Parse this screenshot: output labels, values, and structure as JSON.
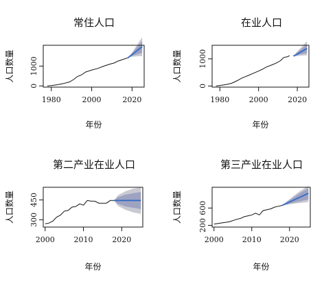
{
  "figure": {
    "background": "#ffffff"
  },
  "colors": {
    "history_line": "#111111",
    "forecast_line": "#3a6fc4",
    "band_95": "#c9c9d2",
    "band_80": "#9fa3c2"
  },
  "chart_data": [
    {
      "type": "line",
      "title": "常住人口",
      "xlabel": "年份",
      "ylabel": "人口数量",
      "xlim": [
        1976,
        2026
      ],
      "ylim": [
        -60,
        2050
      ],
      "xticks": [
        1980,
        2000,
        2020
      ],
      "yticks": [
        0,
        1000
      ],
      "grid": false,
      "legend": "none",
      "history": {
        "x": [
          1978,
          1980,
          1983,
          1986,
          1989,
          1991,
          1993,
          1995,
          1997,
          2000,
          2003,
          2006,
          2009,
          2011,
          2013,
          2015,
          2018
        ],
        "y": [
          0,
          20,
          60,
          120,
          200,
          320,
          480,
          560,
          700,
          800,
          880,
          1000,
          1100,
          1150,
          1250,
          1320,
          1420
        ]
      },
      "forecast": {
        "x": [
          2018,
          2019,
          2020,
          2021,
          2022,
          2023,
          2024,
          2025
        ],
        "mean": [
          1420,
          1500,
          1580,
          1660,
          1740,
          1820,
          1900,
          1980
        ],
        "lo80": [
          1420,
          1470,
          1510,
          1550,
          1580,
          1610,
          1640,
          1660
        ],
        "hi80": [
          1420,
          1530,
          1650,
          1770,
          1900,
          2020,
          2140,
          2260
        ],
        "lo95": [
          1420,
          1450,
          1470,
          1480,
          1490,
          1500,
          1500,
          1500
        ],
        "hi95": [
          1420,
          1550,
          1690,
          1840,
          2000,
          2150,
          2300,
          2450
        ]
      }
    },
    {
      "type": "line",
      "title": "在业人口",
      "xlabel": "年份",
      "ylabel": "人口数量",
      "xlim": [
        1976,
        2026
      ],
      "ylim": [
        -40,
        1500
      ],
      "xticks": [
        1980,
        2000,
        2020
      ],
      "yticks": [
        0,
        1000
      ],
      "grid": false,
      "legend": "none",
      "history": {
        "x": [
          1978,
          1980,
          1983,
          1986,
          1989,
          1991,
          1993,
          1995,
          1997,
          2000,
          2002,
          2004,
          2007,
          2009,
          2011,
          2012,
          2013,
          2015,
          2016
        ],
        "y": [
          0,
          20,
          50,
          100,
          200,
          280,
          340,
          400,
          460,
          550,
          620,
          700,
          780,
          840,
          920,
          980,
          1050,
          1080,
          1120
        ]
      },
      "forecast": {
        "x": [
          2018,
          2019,
          2020,
          2021,
          2022,
          2023,
          2024,
          2025
        ],
        "mean": [
          1100,
          1140,
          1180,
          1220,
          1260,
          1300,
          1340,
          1380
        ],
        "lo80": [
          1100,
          1110,
          1130,
          1150,
          1170,
          1180,
          1200,
          1210
        ],
        "hi80": [
          1100,
          1170,
          1240,
          1300,
          1360,
          1420,
          1480,
          1540
        ],
        "lo95": [
          1100,
          1095,
          1105,
          1110,
          1120,
          1125,
          1130,
          1130
        ],
        "hi95": [
          1100,
          1190,
          1270,
          1350,
          1420,
          1500,
          1580,
          1650
        ]
      }
    },
    {
      "type": "line",
      "title": "第二产业在业人口",
      "xlabel": "年份",
      "ylabel": "人口数量",
      "xlim": [
        1999.5,
        2025.5
      ],
      "ylim": [
        245,
        545
      ],
      "xticks": [
        2000,
        2010,
        2020
      ],
      "yticks": [
        300,
        450
      ],
      "grid": false,
      "legend": "none",
      "history": {
        "x": [
          2000,
          2001,
          2002,
          2003,
          2004,
          2005,
          2006,
          2007,
          2008,
          2009,
          2010,
          2011,
          2012,
          2013,
          2014,
          2015,
          2016,
          2017,
          2018
        ],
        "y": [
          270,
          275,
          290,
          320,
          335,
          365,
          370,
          395,
          400,
          420,
          410,
          445,
          440,
          440,
          425,
          425,
          425,
          445,
          445
        ]
      },
      "forecast": {
        "x": [
          2018,
          2019,
          2020,
          2021,
          2022,
          2023,
          2024,
          2025
        ],
        "mean": [
          445,
          445,
          445,
          445,
          445,
          445,
          445,
          445
        ],
        "lo80": [
          445,
          420,
          410,
          400,
          395,
          390,
          385,
          380
        ],
        "hi80": [
          445,
          470,
          480,
          490,
          495,
          500,
          505,
          510
        ],
        "lo95": [
          445,
          405,
          390,
          375,
          365,
          355,
          350,
          345
        ],
        "hi95": [
          445,
          485,
          500,
          515,
          525,
          535,
          540,
          545
        ]
      }
    },
    {
      "type": "line",
      "title": "第三产业在业人口",
      "xlabel": "年份",
      "ylabel": "人口数量",
      "xlim": [
        1999.5,
        2025.5
      ],
      "ylim": [
        160,
        1080
      ],
      "xticks": [
        2000,
        2010,
        2020
      ],
      "yticks": [
        200,
        600
      ],
      "grid": false,
      "legend": "none",
      "history": {
        "x": [
          2000,
          2002,
          2004,
          2006,
          2007,
          2008,
          2009,
          2010,
          2011,
          2012,
          2013,
          2014,
          2015,
          2016,
          2017,
          2018
        ],
        "y": [
          230,
          255,
          280,
          340,
          360,
          400,
          420,
          440,
          480,
          440,
          540,
          560,
          580,
          620,
          640,
          660
        ]
      },
      "forecast": {
        "x": [
          2018,
          2019,
          2020,
          2021,
          2022,
          2023,
          2024,
          2025
        ],
        "mean": [
          660,
          700,
          740,
          780,
          820,
          860,
          900,
          940
        ],
        "lo80": [
          660,
          680,
          700,
          720,
          740,
          760,
          780,
          800
        ],
        "hi80": [
          660,
          720,
          780,
          840,
          900,
          960,
          1010,
          1060
        ],
        "lo95": [
          660,
          670,
          690,
          700,
          710,
          720,
          730,
          740
        ],
        "hi95": [
          660,
          735,
          805,
          875,
          940,
          1005,
          1060,
          1110
        ]
      }
    }
  ]
}
